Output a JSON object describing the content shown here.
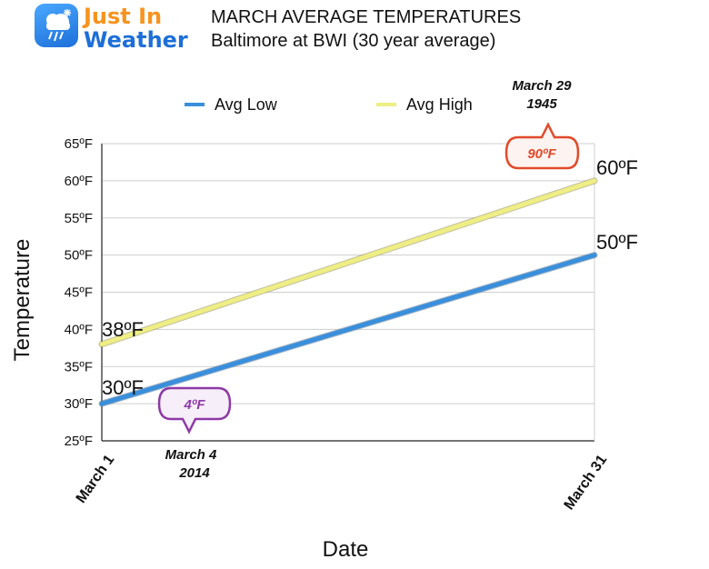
{
  "header": {
    "logo_line1": "Just In",
    "logo_line2": "Weather",
    "title": "MARCH AVERAGE TEMPERATURES",
    "subtitle": "Baltimore at BWI (30 year average)"
  },
  "colors": {
    "avg_low": "#3a8fdc",
    "avg_high": "#eeee84",
    "record_high": "#e14a2a",
    "record_low": "#8e3aa6",
    "logo_orange": "#f7931e",
    "logo_blue": "#1d6fd8"
  },
  "icons": {
    "logo": "weather-logo-icon"
  },
  "chart_data": {
    "type": "line",
    "title": "MARCH AVERAGE TEMPERATURES",
    "subtitle": "Baltimore at BWI (30 year average)",
    "xlabel": "Date",
    "ylabel": "Temperature",
    "x_ticks": [
      "March 1",
      "March 31"
    ],
    "y_ticks": [
      "25ºF",
      "30ºF",
      "35ºF",
      "40ºF",
      "45ºF",
      "50ºF",
      "55ºF",
      "60ºF",
      "65ºF"
    ],
    "ylim": [
      25,
      65
    ],
    "xlim": [
      1,
      31
    ],
    "grid": true,
    "legend": "top",
    "series": [
      {
        "name": "Avg Low",
        "x": [
          1,
          31
        ],
        "values": [
          30,
          50
        ],
        "start_label": "30ºF",
        "end_label": "50ºF"
      },
      {
        "name": "Avg High",
        "x": [
          1,
          31
        ],
        "values": [
          38,
          60
        ],
        "start_label": "38ºF",
        "end_label": "60ºF"
      }
    ],
    "annotations": [
      {
        "label": "90ºF",
        "date_line1": "March 29",
        "date_line2": "1945",
        "kind": "record_high"
      },
      {
        "label": "4ºF",
        "date_line1": "March 4",
        "date_line2": "2014",
        "kind": "record_low"
      }
    ]
  }
}
